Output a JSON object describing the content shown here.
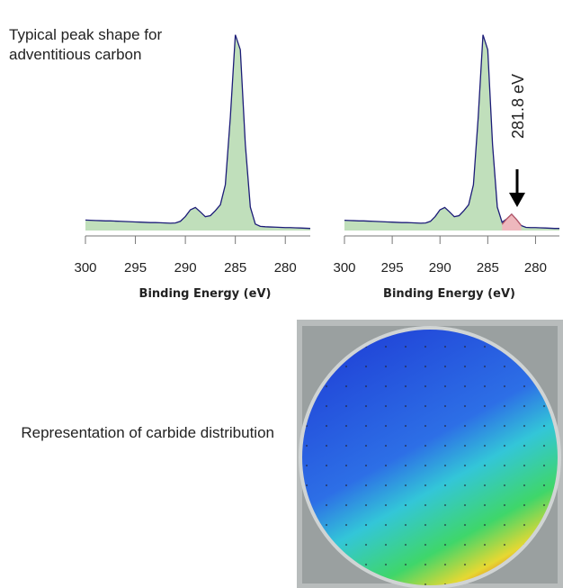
{
  "chart_data": [
    {
      "type": "line",
      "title": "Typical peak shape for adventitious carbon",
      "xlabel": "Binding Energy (eV)",
      "x": [
        300,
        299.5,
        299,
        298.5,
        298,
        297.5,
        297,
        296.5,
        296,
        295.5,
        295,
        294.5,
        294,
        293.5,
        293,
        292.5,
        292,
        291.5,
        291,
        290.5,
        290,
        289.5,
        289,
        288.5,
        288,
        287.5,
        287,
        286.5,
        286,
        285.5,
        285,
        284.5,
        284,
        283.5,
        283,
        282.5,
        282,
        281.5,
        281,
        280.5,
        280,
        279.5,
        279,
        278.5,
        278,
        277.5
      ],
      "series": [
        {
          "color": "#1c1c78",
          "fill": "#b9dcb4",
          "values": [
            5,
            4.9,
            4.8,
            4.7,
            4.6,
            4.6,
            4.5,
            4.4,
            4.3,
            4.2,
            4.1,
            4.0,
            3.9,
            3.8,
            3.8,
            3.7,
            3.6,
            3.5,
            3.6,
            4.4,
            6.7,
            9.9,
            11.0,
            8.9,
            6.6,
            7.1,
            9.5,
            12.3,
            21.9,
            54.1,
            93.5,
            86.4,
            41.2,
            11.2,
            3.1,
            2.0,
            1.8,
            1.7,
            1.6,
            1.5,
            1.4,
            1.4,
            1.3,
            1.2,
            1.1,
            1.0
          ]
        }
      ],
      "xlim": [
        300,
        277.5
      ],
      "xticks": [
        300,
        295,
        290,
        285,
        280
      ],
      "ylim": [
        0,
        105
      ]
    },
    {
      "type": "line",
      "xlabel": "Binding Energy (eV)",
      "annotation": "281.8 eV",
      "x": [
        300,
        299.5,
        299,
        298.5,
        298,
        297.5,
        297,
        296.5,
        296,
        295.5,
        295,
        294.5,
        294,
        293.5,
        293,
        292.5,
        292,
        291.5,
        291,
        290.5,
        290,
        289.5,
        289,
        288.5,
        288,
        287.5,
        287,
        286.5,
        286,
        285.5,
        285,
        284.5,
        284,
        283.5,
        283,
        282.5,
        282,
        281.5,
        281,
        280.5,
        280,
        279.5,
        279,
        278.5,
        278,
        277.5
      ],
      "series": [
        {
          "color": "#1c1c78",
          "fill": "#b9dcb4",
          "values": [
            4.9,
            4.8,
            4.7,
            4.6,
            4.6,
            4.5,
            4.4,
            4.3,
            4.2,
            4.1,
            4.0,
            3.9,
            3.8,
            3.8,
            3.7,
            3.6,
            3.5,
            3.6,
            4.4,
            6.7,
            9.9,
            11.0,
            8.9,
            6.6,
            7.1,
            9.5,
            12.3,
            21.9,
            54.1,
            93.5,
            86.4,
            41.2,
            11.2,
            3.9,
            5.6,
            7.8,
            5.3,
            2.4,
            1.5,
            1.4,
            1.4,
            1.3,
            1.2,
            1.1,
            1.0,
            1.0
          ]
        },
        {
          "color": "#b85a6a",
          "fill": "#f3b4be",
          "values": [
            null,
            null,
            null,
            null,
            null,
            null,
            null,
            null,
            null,
            null,
            null,
            null,
            null,
            null,
            null,
            null,
            null,
            null,
            null,
            null,
            null,
            null,
            null,
            null,
            null,
            null,
            null,
            null,
            null,
            null,
            null,
            null,
            null,
            2.9,
            5.6,
            7.8,
            5.3,
            2.4,
            null,
            null,
            null,
            null,
            null,
            null,
            null,
            null
          ]
        }
      ],
      "xlim": [
        300,
        277.5
      ],
      "xticks": [
        300,
        295,
        290,
        285,
        280
      ],
      "ylim": [
        0,
        105
      ]
    }
  ],
  "wafer_map": {
    "caption": "Representation of carbide distribution"
  }
}
